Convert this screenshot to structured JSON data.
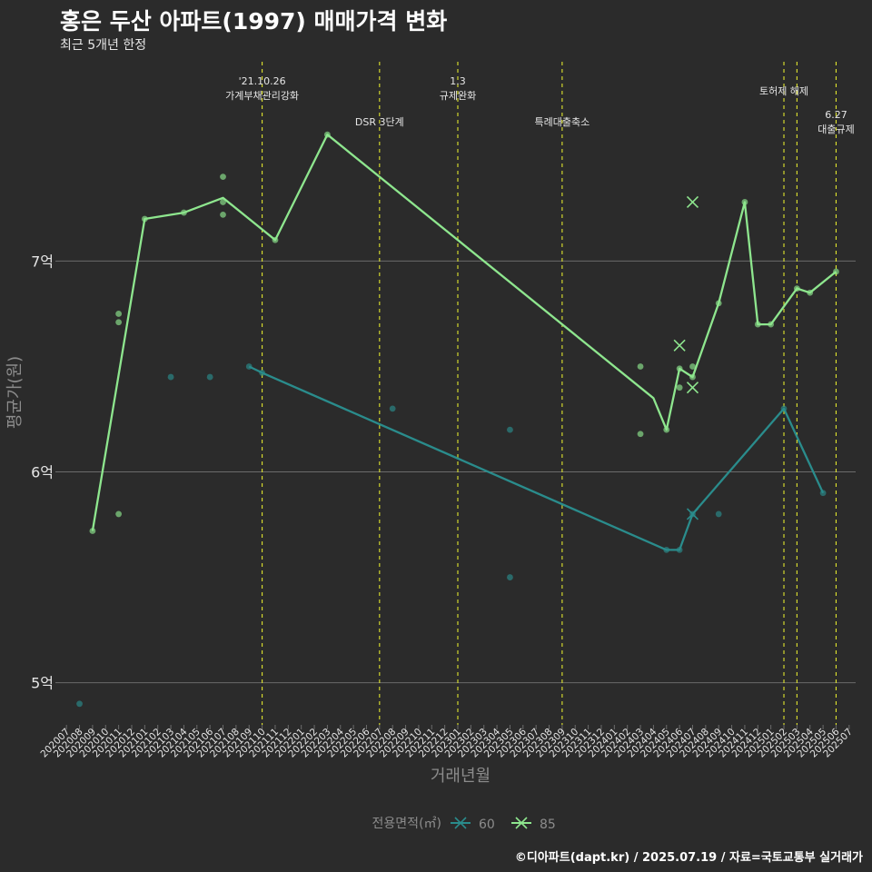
{
  "title": "홍은 두산 아파트(1997) 매매가격 변화",
  "subtitle": "최근 5개년 한정",
  "caption": "©디아파트(dapt.kr) / 2025.07.19 / 자료=국토교통부 실거래가",
  "colors": {
    "s60": "#2a8c8c",
    "s85": "#8ee68e",
    "vline": "#e1e62e",
    "grid": "#6b6b6b",
    "text": "#e6e6e6",
    "axis": "#8c8c8c"
  },
  "chart_data": {
    "type": "line",
    "xlabel": "거래년월",
    "ylabel": "평균가(원)",
    "ylim": [
      4.8,
      7.98
    ],
    "y_ticks": [
      {
        "value": 5,
        "label": "5억"
      },
      {
        "value": 6,
        "label": "6억"
      },
      {
        "value": 7,
        "label": "7억"
      }
    ],
    "x_ticks": [
      "202007",
      "202008",
      "202009",
      "202010",
      "202011",
      "202012",
      "202101",
      "202102",
      "202103",
      "202104",
      "202105",
      "202106",
      "202107",
      "202108",
      "202109",
      "202110",
      "202111",
      "202112",
      "202201",
      "202202",
      "202203",
      "202204",
      "202205",
      "202206",
      "202207",
      "202208",
      "202209",
      "202210",
      "202211",
      "202212",
      "202301",
      "202302",
      "202303",
      "202304",
      "202305",
      "202306",
      "202307",
      "202308",
      "202309",
      "202310",
      "202311",
      "202312",
      "202401",
      "202402",
      "202403",
      "202404",
      "202405",
      "202406",
      "202407",
      "202408",
      "202409",
      "202410",
      "202411",
      "202412",
      "202501",
      "202502",
      "202503",
      "202504",
      "202505",
      "202506",
      "202507"
    ],
    "legend": {
      "title": "전용면적(㎡)",
      "position": "bottom",
      "entries": [
        "60",
        "85"
      ]
    },
    "events": [
      {
        "x": "202110",
        "label": "'21.10.26\n가계부채관리강화",
        "row": 0
      },
      {
        "x": "202207",
        "label": "DSR 3단계",
        "row": 2
      },
      {
        "x": "202301",
        "label": "1.3\n규제완화",
        "row": 0
      },
      {
        "x": "202309",
        "label": "특례대출축소",
        "row": 2
      },
      {
        "x": "202502",
        "label": "토허제 해제",
        "row": 1
      },
      {
        "x": "202503",
        "label": "",
        "row": 1
      },
      {
        "x": "202506",
        "label": "6.27\n대출규제",
        "row": 3
      }
    ],
    "series": [
      {
        "name": "60",
        "color": "#2a8c8c",
        "line": [
          [
            "202109",
            6.5
          ],
          [
            "202110",
            6.47
          ],
          [
            "202405",
            5.63
          ],
          [
            "202406",
            5.63
          ],
          [
            "202407",
            5.8
          ],
          [
            "202502",
            6.3
          ],
          [
            "202505",
            5.9
          ]
        ],
        "points": [
          [
            "202008",
            4.9
          ],
          [
            "202103",
            6.45
          ],
          [
            "202106",
            6.45
          ],
          [
            "202109",
            6.5
          ],
          [
            "202110",
            6.47
          ],
          [
            "202208",
            6.3
          ],
          [
            "202305",
            6.2
          ],
          [
            "202305",
            5.5
          ],
          [
            "202405",
            5.63
          ],
          [
            "202406",
            5.63
          ],
          [
            "202407",
            5.8
          ],
          [
            "202409",
            5.8
          ],
          [
            "202502",
            6.3
          ],
          [
            "202505",
            5.9
          ]
        ],
        "crosses": [
          [
            "202407",
            5.8
          ]
        ]
      },
      {
        "name": "85",
        "color": "#8ee68e",
        "line": [
          [
            "202009",
            5.72
          ],
          [
            "202101",
            7.2
          ],
          [
            "202104",
            7.23
          ],
          [
            "202107",
            7.3
          ],
          [
            "202111",
            7.1
          ],
          [
            "202203",
            7.6
          ],
          [
            "202404",
            6.35
          ],
          [
            "202405",
            6.2
          ],
          [
            "202406",
            6.49
          ],
          [
            "202407",
            6.45
          ],
          [
            "202409",
            6.8
          ],
          [
            "202411",
            7.28
          ],
          [
            "202412",
            6.7
          ],
          [
            "202501",
            6.7
          ],
          [
            "202503",
            6.87
          ],
          [
            "202504",
            6.85
          ],
          [
            "202506",
            6.95
          ]
        ],
        "points": [
          [
            "202009",
            5.72
          ],
          [
            "202011",
            6.75
          ],
          [
            "202011",
            6.71
          ],
          [
            "202011",
            5.8
          ],
          [
            "202101",
            7.2
          ],
          [
            "202104",
            7.23
          ],
          [
            "202107",
            7.4
          ],
          [
            "202107",
            7.28
          ],
          [
            "202107",
            7.22
          ],
          [
            "202111",
            7.1
          ],
          [
            "202203",
            7.6
          ],
          [
            "202403",
            6.5
          ],
          [
            "202403",
            6.18
          ],
          [
            "202405",
            6.2
          ],
          [
            "202406",
            6.4
          ],
          [
            "202406",
            6.49
          ],
          [
            "202407",
            6.5
          ],
          [
            "202407",
            6.45
          ],
          [
            "202409",
            6.8
          ],
          [
            "202411",
            7.28
          ],
          [
            "202412",
            6.7
          ],
          [
            "202501",
            6.7
          ],
          [
            "202503",
            6.87
          ],
          [
            "202504",
            6.85
          ],
          [
            "202506",
            6.95
          ]
        ],
        "crosses": [
          [
            "202406",
            6.6
          ],
          [
            "202407",
            7.28
          ],
          [
            "202407",
            6.4
          ]
        ]
      }
    ]
  }
}
